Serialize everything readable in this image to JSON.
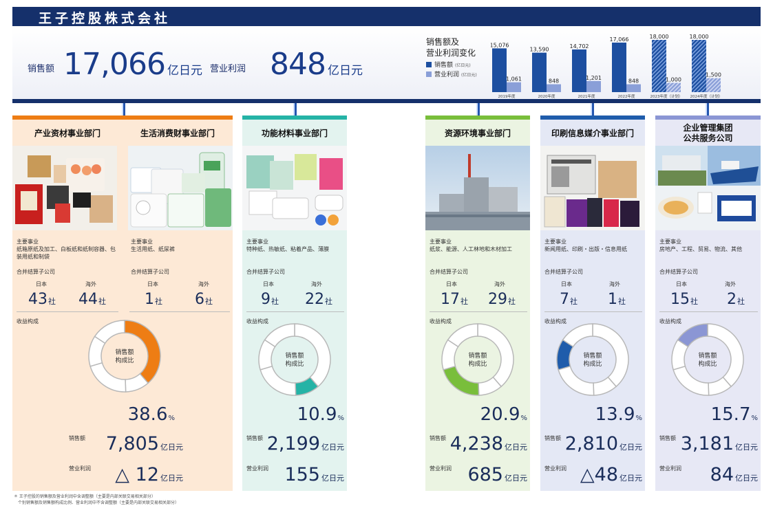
{
  "company": {
    "title": "王子控股株式会社"
  },
  "summary": {
    "sales_label": "销售额",
    "sales_value": "17,066",
    "sales_unit": "亿日元",
    "profit_label": "营业利润",
    "profit_value": "848",
    "profit_unit": "亿日元"
  },
  "colors": {
    "navy": "#15306b",
    "sales_bar": "#1d4fa0",
    "profit_bar": "#8a9fd8"
  },
  "mini_chart": {
    "title_line1": "销售额及",
    "title_line2": "营业利润变化",
    "legend_sales": "销售额",
    "legend_sales_unit": "(亿日元)",
    "legend_profit": "营业利润",
    "legend_profit_unit": "(亿日元)"
  },
  "chart_data": {
    "type": "bar",
    "categories": [
      "2019年度",
      "2020年度",
      "2021年度",
      "2022年度",
      "2023年度（计划）",
      "2024年度（计划）"
    ],
    "series": [
      {
        "name": "销售额",
        "values": [
          15076,
          13590,
          14702,
          17066,
          18000,
          18000
        ]
      },
      {
        "name": "营业利润",
        "values": [
          1061,
          848,
          1201,
          848,
          1000,
          1500
        ]
      }
    ],
    "value_labels": {
      "sales": [
        "15,076",
        "13,590",
        "14,702",
        "17,066",
        "18,000",
        "18,000"
      ],
      "profit": [
        "1,061",
        "848",
        "1,201",
        "848",
        "1,000",
        "1,500"
      ]
    },
    "planned": [
      false,
      false,
      false,
      false,
      true,
      true
    ],
    "legend": "left"
  },
  "divisions": [
    {
      "name": "产业资材事业部门",
      "biz_label": "主要事业",
      "biz": "纸箱原纸及加工、白板纸和纸制容器、包装用纸和制袋",
      "sub_label": "合并结算子公司",
      "jp_label": "日本",
      "os_label": "海外",
      "jp": "43",
      "os": "44",
      "unit": "社",
      "share_label": "收益构成",
      "donut_label_1": "销售额",
      "donut_label_2": "构成比",
      "share": 38.6,
      "share_text": "38.6",
      "pct_unit": "%",
      "sales_label": "销售额",
      "sales": "7,805",
      "profit_label": "营业利润",
      "profit": "△ 12",
      "money_unit": "亿日元",
      "color": "#ee7d14",
      "bg": "#fde9d6"
    },
    {
      "name": "生活消费财事业部门",
      "biz_label": "主要事业",
      "biz": "生活用纸、纸尿裤",
      "sub_label": "合并结算子公司",
      "jp_label": "日本",
      "os_label": "海外",
      "jp": "1",
      "os": "6",
      "unit": "社"
    },
    {
      "name": "功能材料事业部门",
      "biz_label": "主要事业",
      "biz": "特种纸、热敏纸、粘着产品、薄膜",
      "sub_label": "合并结算子公司",
      "jp_label": "日本",
      "os_label": "海外",
      "jp": "9",
      "os": "22",
      "unit": "社",
      "share_label": "收益构成",
      "donut_label_1": "销售额",
      "donut_label_2": "构成比",
      "share": 10.9,
      "share_text": "10.9",
      "pct_unit": "%",
      "sales_label": "销售额",
      "sales": "2,199",
      "profit_label": "营业利润",
      "profit": "155",
      "money_unit": "亿日元",
      "color": "#25b3a6",
      "bg": "#e3f3ef"
    },
    {
      "name": "资源环境事业部门",
      "biz_label": "主要事业",
      "biz": "纸浆、能源、人工林地和木材加工",
      "sub_label": "合并结算子公司",
      "jp_label": "日本",
      "os_label": "海外",
      "jp": "17",
      "os": "29",
      "unit": "社",
      "share_label": "收益构成",
      "donut_label_1": "销售额",
      "donut_label_2": "构成比",
      "share": 20.9,
      "share_text": "20.9",
      "pct_unit": "%",
      "sales_label": "销售额",
      "sales": "4,238",
      "profit_label": "营业利润",
      "profit": "685",
      "money_unit": "亿日元",
      "color": "#79be3b",
      "bg": "#ebf4e2"
    },
    {
      "name": "印刷信息媒介事业部门",
      "biz_label": "主要事业",
      "biz": "新闻用纸、印刷・出版・信息用纸",
      "sub_label": "合并结算子公司",
      "jp_label": "日本",
      "os_label": "海外",
      "jp": "7",
      "os": "1",
      "unit": "社",
      "share_label": "收益构成",
      "donut_label_1": "销售额",
      "donut_label_2": "构成比",
      "share": 13.9,
      "share_text": "13.9",
      "pct_unit": "%",
      "sales_label": "销售额",
      "sales": "2,810",
      "profit_label": "营业利润",
      "profit": "△48",
      "money_unit": "亿日元",
      "color": "#1f5cab",
      "bg": "#e4e8f5"
    },
    {
      "name_line1": "企业管理集团",
      "name_line2": "公共服务公司",
      "biz_label": "主要事业",
      "biz": "房地产、工程、贸易、物流、其他",
      "sub_label": "合并结算子公司",
      "jp_label": "日本",
      "os_label": "海外",
      "jp": "15",
      "os": "2",
      "unit": "社",
      "share_label": "收益构成",
      "donut_label_1": "销售额",
      "donut_label_2": "构成比",
      "share": 15.7,
      "share_text": "15.7",
      "pct_unit": "%",
      "sales_label": "销售额",
      "sales": "3,181",
      "profit_label": "营业利润",
      "profit": "84",
      "money_unit": "亿日元",
      "color": "#8b96d4",
      "bg": "#e7e8f5"
    }
  ],
  "footnotes": {
    "line1": "＊ 王子控股的销售额及营业利润中含调整额（主要是内部关联交易相关部分）",
    "line2": "个别销售额及销售额构成比例、营业利润中不含调整额（主要是内部关联交易相关部分）"
  }
}
